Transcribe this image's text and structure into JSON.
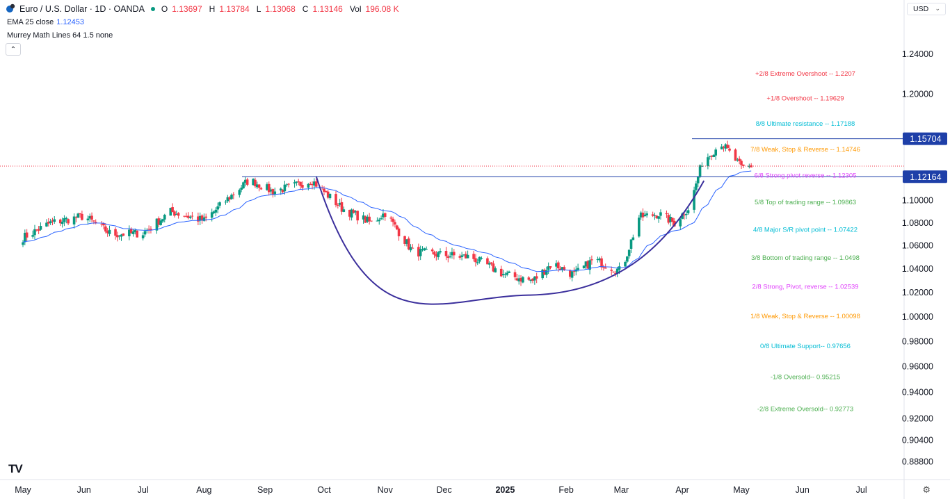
{
  "header": {
    "symbol": "Euro / U.S. Dollar · 1D · OANDA",
    "open_label": "O",
    "open": "1.13697",
    "high_label": "H",
    "high": "1.13784",
    "low_label": "L",
    "low": "1.13068",
    "close_label": "C",
    "close": "1.13146",
    "vol_label": "Vol",
    "vol": "196.08 K"
  },
  "indicators": {
    "ema_label": "EMA 25 close",
    "ema_value": "1.12453",
    "murrey_label": "Murrey Math Lines 64 1.5 none"
  },
  "controls": {
    "currency": "USD",
    "collapse": "⌃",
    "currency_chevron": "⌄",
    "settings_icon": "⚙"
  },
  "logo_text": "TV",
  "colors": {
    "up": "#089981",
    "down": "#f23645",
    "ema": "#2962ff",
    "cup": "#3b2f9c",
    "level_line": "#1e3fa8"
  },
  "chart_data": {
    "type": "candlestick",
    "y_scale": "log",
    "y_ticks": [
      "1.24000",
      "1.20000",
      "1.10000",
      "1.08000",
      "1.06000",
      "1.04000",
      "1.02000",
      "1.00000",
      "0.98000",
      "0.96000",
      "0.94000",
      "0.92000",
      "0.90400",
      "0.88800"
    ],
    "x_labels": [
      "May",
      "Jun",
      "Jul",
      "Aug",
      "Sep",
      "Oct",
      "Nov",
      "Dec",
      "2025",
      "Feb",
      "Mar",
      "Apr",
      "May",
      "Jun",
      "Jul"
    ],
    "price_labels": [
      {
        "text": "1.15704",
        "value": 1.15704
      },
      {
        "text": "1.12164",
        "value": 1.12164
      }
    ],
    "last_price": 1.13146,
    "murrey_levels": [
      {
        "label": "+2/8 Extreme Overshoot --  1.2207",
        "value": 1.2207,
        "color": "#f23645"
      },
      {
        "label": "+1/8 Overshoot --  1.19629",
        "value": 1.19629,
        "color": "#f23645"
      },
      {
        "label": "8/8 Ultimate resistance --  1.17188",
        "value": 1.17188,
        "color": "#00bcd4"
      },
      {
        "label": "7/8 Weak, Stop & Reverse --  1.14746",
        "value": 1.14746,
        "color": "#ff9800"
      },
      {
        "label": "6/8 Strong pivot reverse --  1.12305",
        "value": 1.12305,
        "color": "#e040fb"
      },
      {
        "label": "5/8 Top of trading range --  1.09863",
        "value": 1.09863,
        "color": "#4caf50"
      },
      {
        "label": "4/8 Major S/R pivot point --  1.07422",
        "value": 1.07422,
        "color": "#00bcd4"
      },
      {
        "label": "3/8 Bottom of trading range --  1.0498",
        "value": 1.0498,
        "color": "#4caf50"
      },
      {
        "label": "2/8 Strong, Pivot, reverse --  1.02539",
        "value": 1.02539,
        "color": "#e040fb"
      },
      {
        "label": "1/8 Weak, Stop & Reverse --  1.00098",
        "value": 1.00098,
        "color": "#ff9800"
      },
      {
        "label": "0/8 Ultimate Support--  0.97656",
        "value": 0.97656,
        "color": "#00bcd4"
      },
      {
        "label": "-1/8 Oversold--  0.95215",
        "value": 0.95215,
        "color": "#4caf50"
      },
      {
        "label": "-2/8 Extreme Oversold--  0.92773",
        "value": 0.92773,
        "color": "#4caf50"
      }
    ],
    "close_anchors": [
      [
        "2024-05-01",
        1.067
      ],
      [
        "2024-05-15",
        1.08
      ],
      [
        "2024-06-01",
        1.086
      ],
      [
        "2024-06-15",
        1.07
      ],
      [
        "2024-07-01",
        1.071
      ],
      [
        "2024-07-15",
        1.09
      ],
      [
        "2024-08-01",
        1.082
      ],
      [
        "2024-08-24",
        1.119
      ],
      [
        "2024-09-05",
        1.108
      ],
      [
        "2024-09-25",
        1.118
      ],
      [
        "2024-10-10",
        1.093
      ],
      [
        "2024-10-25",
        1.08
      ],
      [
        "2024-11-01",
        1.089
      ],
      [
        "2024-11-15",
        1.055
      ],
      [
        "2024-12-01",
        1.052
      ],
      [
        "2024-12-15",
        1.05
      ],
      [
        "2025-01-01",
        1.035
      ],
      [
        "2025-01-15",
        1.03
      ],
      [
        "2025-01-25",
        1.045
      ],
      [
        "2025-02-05",
        1.035
      ],
      [
        "2025-02-15",
        1.048
      ],
      [
        "2025-03-01",
        1.038
      ],
      [
        "2025-03-10",
        1.085
      ],
      [
        "2025-03-20",
        1.088
      ],
      [
        "2025-03-28",
        1.08
      ],
      [
        "2025-04-05",
        1.095
      ],
      [
        "2025-04-11",
        1.135
      ],
      [
        "2025-04-21",
        1.153
      ],
      [
        "2025-05-01",
        1.13
      ],
      [
        "2025-05-06",
        1.1315
      ]
    ]
  }
}
